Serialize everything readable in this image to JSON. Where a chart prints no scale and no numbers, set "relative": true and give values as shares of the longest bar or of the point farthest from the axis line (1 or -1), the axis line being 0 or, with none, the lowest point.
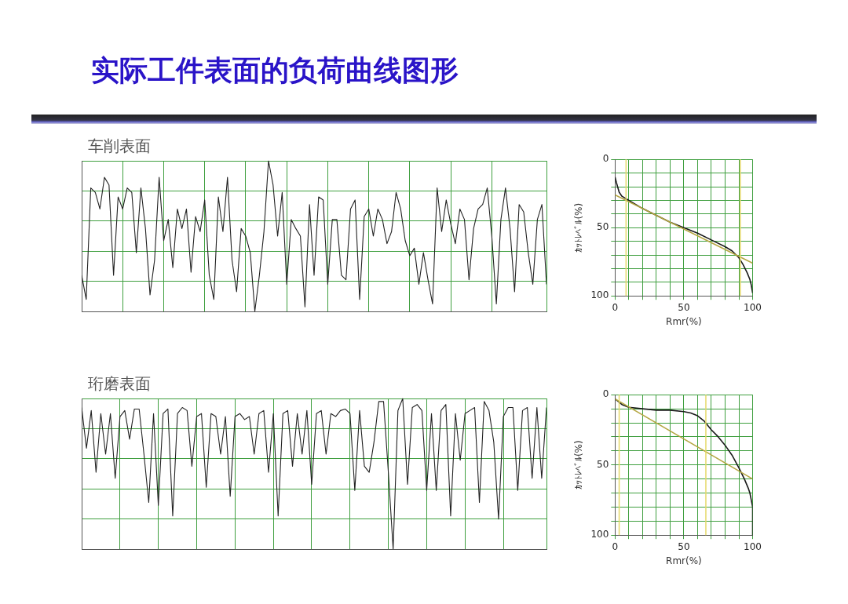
{
  "chart_data": [
    {
      "type": "line",
      "title": "实际工件表面的负荷曲线图形",
      "subtitle": "车削表面",
      "relative": true,
      "grid": true,
      "tick_labels": false,
      "legend": false,
      "categories": [
        null,
        null,
        null,
        null,
        null,
        null,
        null,
        null,
        null,
        null,
        null,
        null,
        null,
        null,
        null,
        null,
        null,
        null,
        null,
        null,
        null,
        null,
        null,
        null,
        null,
        null,
        null,
        null,
        null,
        null,
        null,
        null,
        null,
        null,
        null,
        null,
        null,
        null,
        null,
        null,
        null,
        null,
        null,
        null,
        null,
        null,
        null,
        null,
        null,
        null,
        null,
        null,
        null,
        null,
        null,
        null,
        null,
        null,
        null,
        null,
        null,
        null,
        null,
        null,
        null,
        null,
        null,
        null,
        null,
        null,
        null,
        null,
        null,
        null,
        null,
        null,
        null,
        null,
        null,
        null,
        null,
        null,
        null,
        null,
        null,
        null,
        null,
        null,
        null,
        null,
        null,
        null,
        null,
        null,
        null,
        null,
        null,
        null,
        null,
        null,
        null,
        null,
        null
      ],
      "series": [
        {
          "color": "#222222",
          "values": [
            0.24,
            0.08,
            0.82,
            0.79,
            0.68,
            0.89,
            0.84,
            0.24,
            0.76,
            0.68,
            0.82,
            0.79,
            0.39,
            0.82,
            0.55,
            0.11,
            0.34,
            0.89,
            0.47,
            0.61,
            0.29,
            0.68,
            0.55,
            0.68,
            0.26,
            0.63,
            0.53,
            0.74,
            0.24,
            0.08,
            0.76,
            0.53,
            0.89,
            0.34,
            0.13,
            0.55,
            0.5,
            0.39,
            0,
            0.24,
            0.53,
            1,
            0.84,
            0.5,
            0.79,
            0.18,
            0.61,
            0.55,
            0.5,
            0.03,
            0.71,
            0.24,
            0.76,
            0.74,
            0.18,
            0.61,
            0.61,
            0.24,
            0.21,
            0.68,
            0.74,
            0.08,
            0.63,
            0.68,
            0.5,
            0.68,
            0.61,
            0.45,
            0.53,
            0.79,
            0.68,
            0.47,
            0.37,
            0.42,
            0.18,
            0.39,
            0.21,
            0.05,
            0.82,
            0.53,
            0.74,
            0.58,
            0.45,
            0.68,
            0.61,
            0.21,
            0.55,
            0.68,
            0.71,
            0.82,
            0.5,
            0.05,
            0.61,
            0.82,
            0.55,
            0.13,
            0.71,
            0.66,
            0.39,
            0.18,
            0.61,
            0.71,
            0.18
          ]
        }
      ]
    },
    {
      "type": "line",
      "xlabel": "Rmr(%)",
      "ylabel": "ｶｯﾄﾚﾍﾞﾙ(%)",
      "grid": true,
      "legend": false,
      "marker": "none",
      "xlim": [
        0,
        100
      ],
      "ylim": [
        100,
        0
      ],
      "xticks": [
        0,
        {
          "value": 10,
          "label": null
        },
        {
          "value": 20,
          "label": null
        },
        {
          "value": 30,
          "label": null
        },
        {
          "value": 40,
          "label": null
        },
        50,
        {
          "value": 60,
          "label": null
        },
        {
          "value": 70,
          "label": null
        },
        {
          "value": 80,
          "label": null
        },
        {
          "value": 90,
          "label": null
        },
        100
      ],
      "yticks": [
        0,
        {
          "value": 10,
          "label": null
        },
        {
          "value": 20,
          "label": null
        },
        {
          "value": 30,
          "label": null
        },
        {
          "value": 40,
          "label": null
        },
        50,
        {
          "value": 60,
          "label": null
        },
        {
          "value": 70,
          "label": null
        },
        {
          "value": 80,
          "label": null
        },
        {
          "value": 90,
          "label": null
        },
        100
      ],
      "series": [
        {
          "color": "#b5a642",
          "x": [
            0,
            100
          ],
          "values": [
            26,
            76
          ]
        },
        {
          "color": "#1a1a1a",
          "x": [
            0,
            1,
            3,
            5,
            10,
            20,
            30,
            40,
            50,
            60,
            70,
            80,
            85,
            90,
            93,
            96,
            98,
            99,
            100
          ],
          "values": [
            13,
            17,
            24,
            27,
            30,
            36,
            41,
            46,
            50,
            54,
            59,
            64,
            67,
            72,
            77,
            83,
            88,
            92,
            98
          ]
        }
      ],
      "ref_lines": [
        {
          "axis": "x",
          "value": 8,
          "color": "#e6d96a"
        },
        {
          "axis": "x",
          "value": 91,
          "color": "#e6d96a"
        }
      ]
    },
    {
      "type": "line",
      "title": "珩磨表面",
      "relative": true,
      "grid": true,
      "tick_labels": false,
      "legend": false,
      "categories": [
        null,
        null,
        null,
        null,
        null,
        null,
        null,
        null,
        null,
        null,
        null,
        null,
        null,
        null,
        null,
        null,
        null,
        null,
        null,
        null,
        null,
        null,
        null,
        null,
        null,
        null,
        null,
        null,
        null,
        null,
        null,
        null,
        null,
        null,
        null,
        null,
        null,
        null,
        null,
        null,
        null,
        null,
        null,
        null,
        null,
        null,
        null,
        null,
        null,
        null,
        null,
        null,
        null,
        null,
        null,
        null,
        null,
        null,
        null,
        null,
        null,
        null,
        null,
        null,
        null,
        null,
        null,
        null,
        null,
        null,
        null,
        null,
        null,
        null,
        null,
        null,
        null,
        null,
        null,
        null,
        null,
        null,
        null,
        null,
        null,
        null,
        null,
        null,
        null,
        null,
        null,
        null,
        null,
        null,
        null,
        null,
        null,
        null
      ],
      "series": [
        {
          "color": "#222222",
          "values": [
            0.94,
            0.67,
            0.92,
            0.51,
            0.9,
            0.63,
            0.9,
            0.47,
            0.88,
            0.92,
            0.73,
            0.93,
            0.93,
            0.63,
            0.31,
            0.9,
            0.29,
            0.9,
            0.93,
            0.22,
            0.9,
            0.94,
            0.92,
            0.55,
            0.88,
            0.9,
            0.41,
            0.9,
            0.88,
            0.63,
            0.88,
            0.35,
            0.88,
            0.9,
            0.86,
            0.88,
            0.63,
            0.9,
            0.92,
            0.51,
            0.9,
            0.22,
            0.9,
            0.92,
            0.55,
            0.9,
            0.63,
            0.92,
            0.43,
            0.9,
            0.92,
            0.63,
            0.9,
            0.88,
            0.92,
            0.93,
            0.9,
            0.39,
            0.92,
            0.55,
            0.51,
            0.71,
            0.98,
            0.98,
            0.51,
            0,
            0.92,
            1,
            0.43,
            0.94,
            0.96,
            0.92,
            0.39,
            0.9,
            0.39,
            0.92,
            0.96,
            0.22,
            0.9,
            0.59,
            0.9,
            0.92,
            0.94,
            0.31,
            0.98,
            0.92,
            0.71,
            0.2,
            0.88,
            0.94,
            0.94,
            0.39,
            0.92,
            0.94,
            0.47,
            0.94,
            0.47,
            0.94
          ]
        }
      ]
    },
    {
      "type": "line",
      "xlabel": "Rmr(%)",
      "ylabel": "ｶｯﾄﾚﾍﾞﾙ(%)",
      "grid": true,
      "legend": false,
      "marker": "none",
      "xlim": [
        0,
        100
      ],
      "ylim": [
        100,
        0
      ],
      "xticks": [
        0,
        {
          "value": 10,
          "label": null
        },
        {
          "value": 20,
          "label": null
        },
        {
          "value": 30,
          "label": null
        },
        {
          "value": 40,
          "label": null
        },
        50,
        {
          "value": 60,
          "label": null
        },
        {
          "value": 70,
          "label": null
        },
        {
          "value": 80,
          "label": null
        },
        {
          "value": 90,
          "label": null
        },
        100
      ],
      "yticks": [
        0,
        {
          "value": 10,
          "label": null
        },
        {
          "value": 20,
          "label": null
        },
        {
          "value": 30,
          "label": null
        },
        {
          "value": 40,
          "label": null
        },
        50,
        {
          "value": 60,
          "label": null
        },
        {
          "value": 70,
          "label": null
        },
        {
          "value": 80,
          "label": null
        },
        {
          "value": 90,
          "label": null
        },
        100
      ],
      "series": [
        {
          "color": "#b5a642",
          "x": [
            0,
            100
          ],
          "values": [
            3,
            60
          ]
        },
        {
          "color": "#1a1a1a",
          "x": [
            0,
            5,
            10,
            20,
            30,
            40,
            50,
            55,
            60,
            65,
            70,
            75,
            80,
            85,
            90,
            94,
            97,
            98,
            99,
            100,
            100
          ],
          "values": [
            3,
            7,
            9,
            10,
            11,
            11,
            12,
            13,
            15,
            19,
            25,
            30,
            36,
            43,
            52,
            60,
            67,
            70,
            75,
            80,
            100
          ]
        }
      ],
      "ref_lines": [
        {
          "axis": "x",
          "value": 3,
          "color": "#e6d96a"
        },
        {
          "axis": "x",
          "value": 66,
          "color": "#e6d96a"
        }
      ]
    }
  ]
}
